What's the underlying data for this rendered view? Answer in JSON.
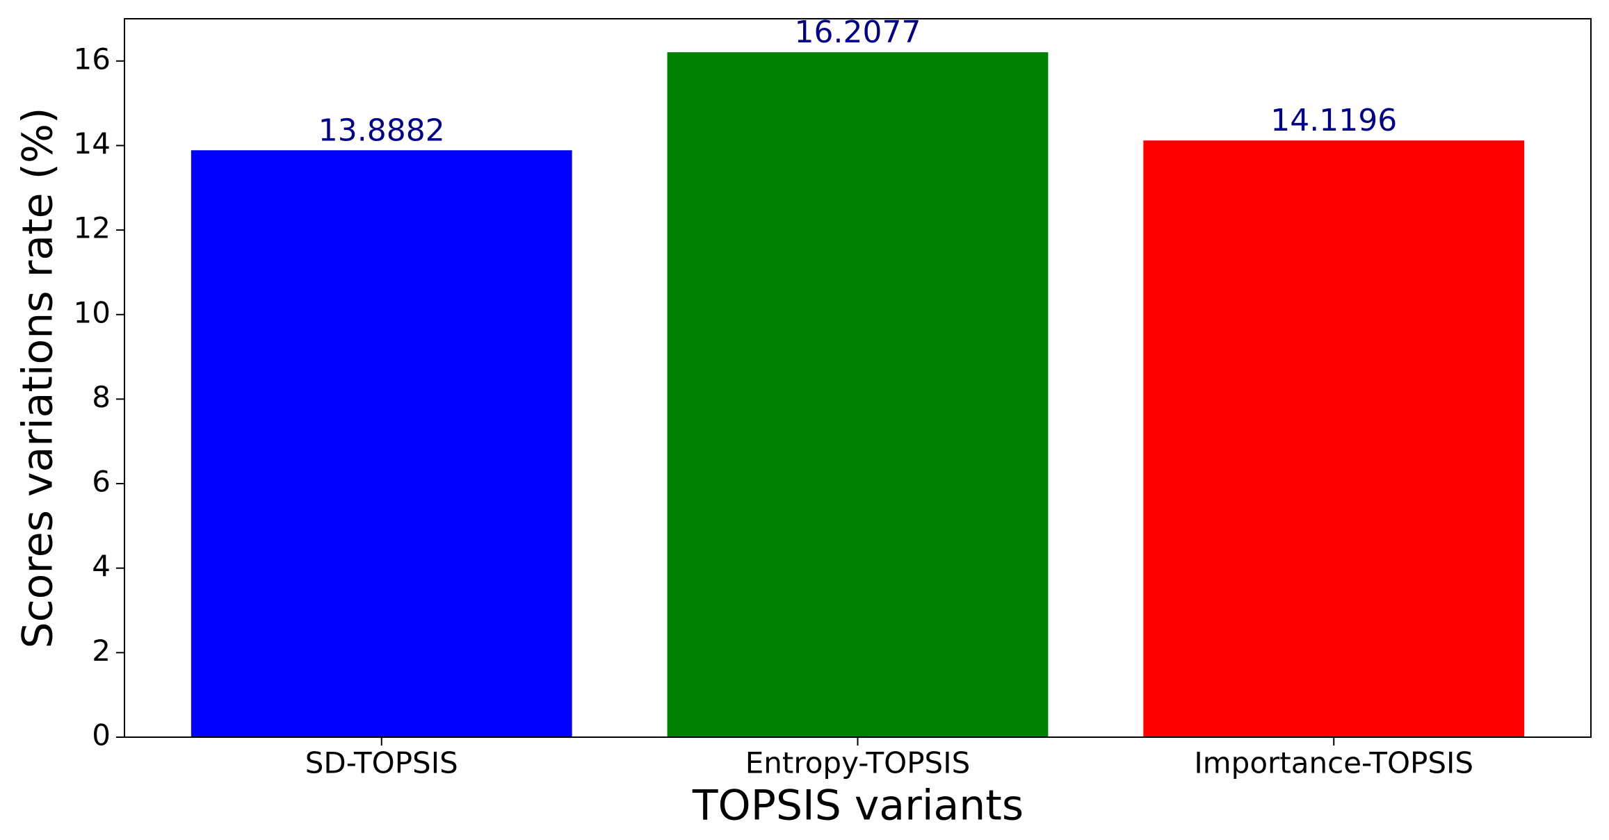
{
  "chart_data": {
    "type": "bar",
    "categories": [
      "SD-TOPSIS",
      "Entropy-TOPSIS",
      "Importance-TOPSIS"
    ],
    "values": [
      13.8882,
      16.2077,
      14.1196
    ],
    "colors": [
      "#0000ff",
      "#008000",
      "#ff0000"
    ],
    "value_label_color": "#00008b",
    "xlabel": "TOPSIS variants",
    "ylabel": "Scores variations rate (%)",
    "ylim": [
      0,
      17.0
    ],
    "yticks": [
      0,
      2,
      4,
      6,
      8,
      10,
      12,
      14,
      16
    ],
    "grid": false
  }
}
